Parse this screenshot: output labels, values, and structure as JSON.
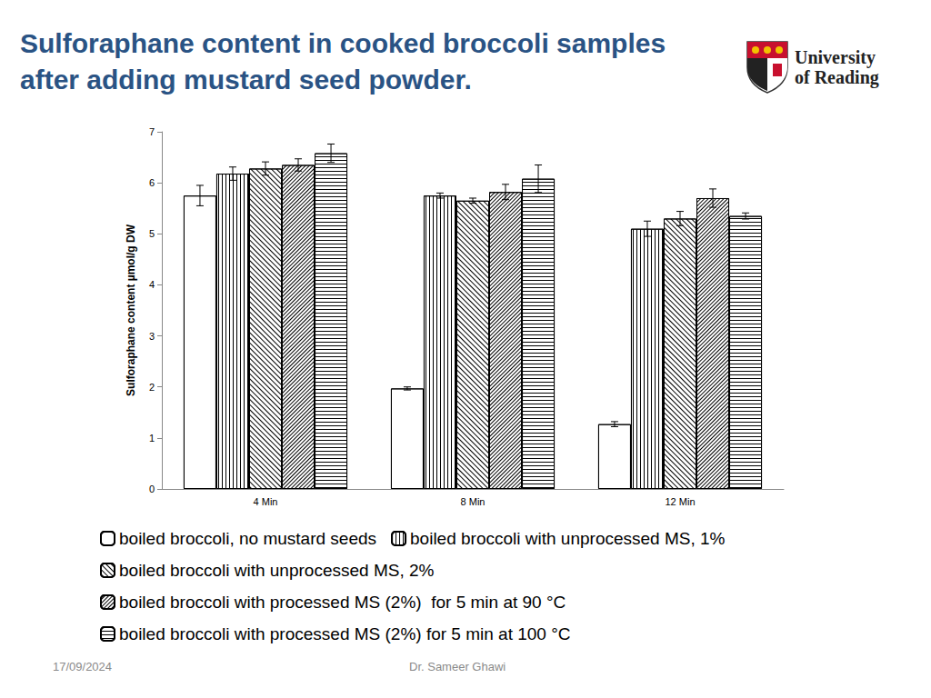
{
  "chart_data": {
    "type": "bar",
    "title": "Sulforaphane content in cooked broccoli samples after adding mustard seed powder.",
    "y_label": "Sulforaphane content µmol/g DW",
    "categories": [
      "4 Min",
      "8 Min",
      "12 Min"
    ],
    "series": [
      {
        "name": "boiled broccoli, no mustard seeds",
        "color": "#ffffff",
        "values": [
          5.75,
          1.97,
          1.27
        ],
        "errors": [
          0.2,
          0.03,
          0.05
        ]
      },
      {
        "name": "boiled broccoli with unprocessed MS, 1%",
        "color": "#ffffff",
        "values": [
          6.18,
          5.75,
          5.1
        ],
        "errors": [
          0.13,
          0.05,
          0.15
        ]
      },
      {
        "name": "boiled broccoli with unprocessed MS, 2%",
        "color": "#ffffff",
        "values": [
          6.28,
          5.65,
          5.3
        ],
        "errors": [
          0.13,
          0.05,
          0.14
        ]
      },
      {
        "name": "boiled broccoli with processed MS (2%)  for 5 min at 90 °C",
        "color": "#ffffff",
        "values": [
          6.35,
          5.82,
          5.7
        ],
        "errors": [
          0.12,
          0.15,
          0.18
        ]
      },
      {
        "name": "boiled broccoli with processed MS (2%) for 5 min at 100 °C",
        "color": "#ffffff",
        "values": [
          6.58,
          6.08,
          5.35
        ],
        "errors": [
          0.18,
          0.27,
          0.06
        ]
      }
    ],
    "ylim": [
      0,
      7
    ],
    "yticks": [
      0,
      1,
      2,
      3,
      4,
      5,
      6,
      7
    ],
    "grid": false,
    "legend": "bottom"
  },
  "slide": {
    "logo_text": [
      "University",
      "of Reading"
    ],
    "date": "17/09/2024",
    "author": "Dr. Sameer Ghawi"
  }
}
